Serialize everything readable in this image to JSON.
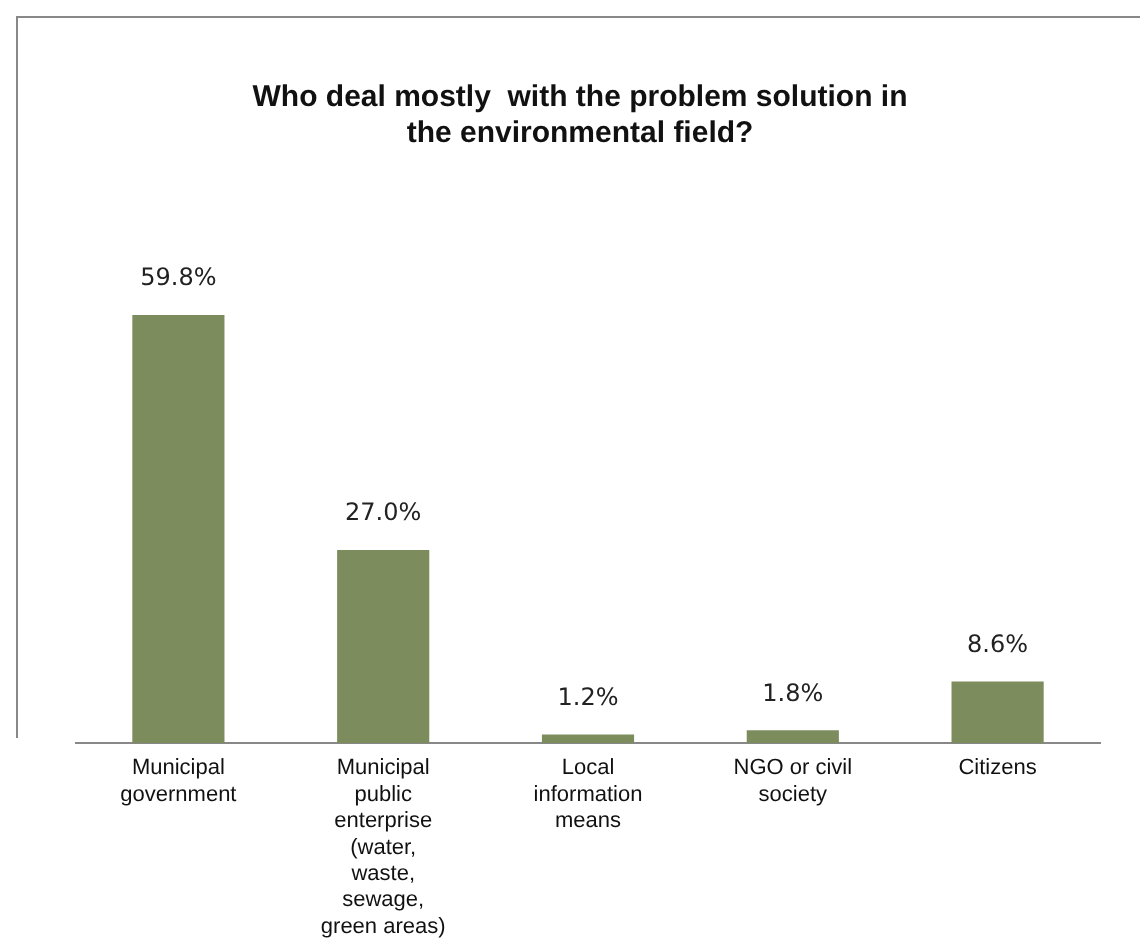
{
  "chart_data": {
    "type": "bar",
    "title": "Who deal mostly  with the problem solution in the environmental field?",
    "categories": [
      "Municipal government",
      "Municipal public enterprise (water, waste, sewage, green areas)",
      "Local information means",
      "NGO or civil society",
      "Citizens"
    ],
    "values": [
      59.8,
      27.0,
      1.2,
      1.8,
      8.6
    ],
    "value_labels": [
      "59.8%",
      "27.0%",
      "1.2%",
      "1.8%",
      "8.6%"
    ],
    "color": "#7d8c5c",
    "grid": false,
    "legend": false
  }
}
